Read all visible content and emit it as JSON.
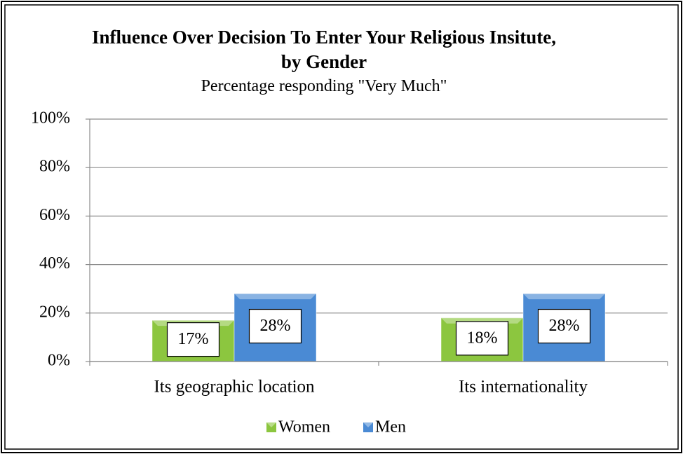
{
  "chart_data": {
    "type": "bar",
    "title": "Influence Over Decision To Enter Your Religious Insitute, by Gender",
    "subtitle": "Percentage responding \"Very Much\"",
    "categories": [
      "Its geographic location",
      "Its internationality"
    ],
    "series": [
      {
        "name": "Women",
        "color": "#8cc63f",
        "values": [
          17,
          18
        ],
        "value_labels": [
          "17%",
          "18%"
        ]
      },
      {
        "name": "Men",
        "color": "#4a8ad4",
        "values": [
          28,
          28
        ],
        "value_labels": [
          "28%",
          "28%"
        ]
      }
    ],
    "ylim": [
      0,
      100
    ],
    "yticks": [
      {
        "value": 0,
        "label": "0%"
      },
      {
        "value": 20,
        "label": "20%"
      },
      {
        "value": 40,
        "label": "40%"
      },
      {
        "value": 60,
        "label": "60%"
      },
      {
        "value": 80,
        "label": "80%"
      },
      {
        "value": 100,
        "label": "100%"
      }
    ],
    "grid": true,
    "legend": "bottom"
  }
}
